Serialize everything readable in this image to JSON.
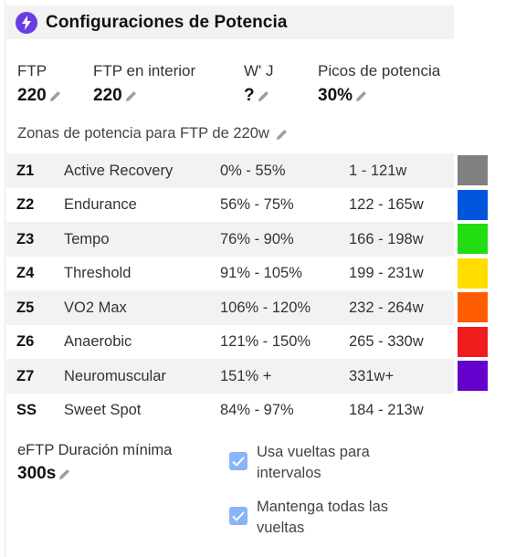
{
  "header": {
    "title": "Configuraciones de Potencia",
    "icon": "lightning-bolt-icon",
    "icon_color": "#6a3de0"
  },
  "stats": {
    "ftp": {
      "label": "FTP",
      "value": "220"
    },
    "ftp_indoor": {
      "label": "FTP en interior",
      "value": "220"
    },
    "w_prime": {
      "label": "W' J",
      "value": "?"
    },
    "peaks": {
      "label": "Picos de potencia",
      "value": "30%"
    }
  },
  "zones_caption": "Zonas de potencia para FTP de 220w",
  "zones": [
    {
      "id": "Z1",
      "name": "Active Recovery",
      "percent": "0% - 55%",
      "watts": "1 - 121w",
      "color": "#808080"
    },
    {
      "id": "Z2",
      "name": "Endurance",
      "percent": "56% - 75%",
      "watts": "122 - 165w",
      "color": "#0055dd"
    },
    {
      "id": "Z3",
      "name": "Tempo",
      "percent": "76% - 90%",
      "watts": "166 - 198w",
      "color": "#22dd11"
    },
    {
      "id": "Z4",
      "name": "Threshold",
      "percent": "91% - 105%",
      "watts": "199 - 231w",
      "color": "#ffdd00"
    },
    {
      "id": "Z5",
      "name": "VO2 Max",
      "percent": "106% - 120%",
      "watts": "232 - 264w",
      "color": "#ff5c00"
    },
    {
      "id": "Z6",
      "name": "Anaerobic",
      "percent": "121% - 150%",
      "watts": "265 - 330w",
      "color": "#ee1c1c"
    },
    {
      "id": "Z7",
      "name": "Neuromuscular",
      "percent": "151% +",
      "watts": "331w+",
      "color": "#6600cc"
    },
    {
      "id": "SS",
      "name": "Sweet Spot",
      "percent": "84% - 97%",
      "watts": "184 - 213w",
      "color": ""
    }
  ],
  "eftp": {
    "label": "eFTP Duración mínima",
    "value": "300s"
  },
  "options": {
    "use_laps": {
      "label": "Usa vueltas para intervalos",
      "checked": true
    },
    "keep_laps": {
      "label": "Mantenga todas las vueltas",
      "checked": true
    }
  },
  "colors": {
    "checkbox": "#8ab4f8",
    "row_shade": "#f2f2f2"
  }
}
